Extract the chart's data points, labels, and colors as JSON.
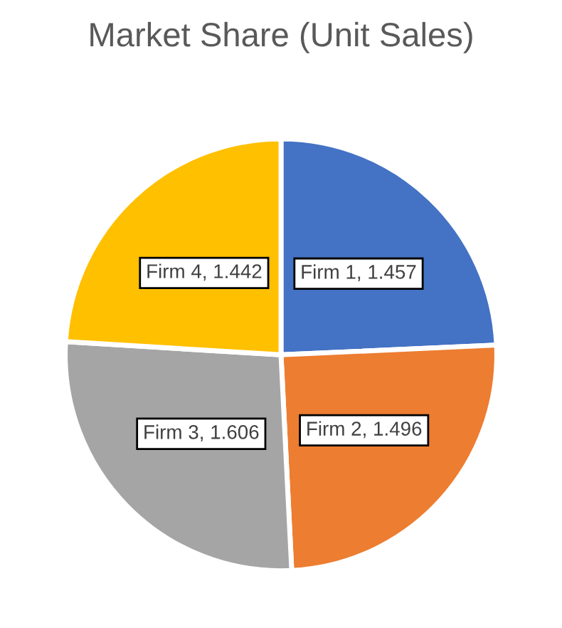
{
  "chart_data": {
    "type": "pie",
    "title": "Market Share (Unit Sales)",
    "categories": [
      "Firm 1",
      "Firm 2",
      "Firm 3",
      "Firm 4"
    ],
    "values": [
      1.457,
      1.496,
      1.606,
      1.442
    ],
    "colors": [
      "#4472c4",
      "#ed7d31",
      "#a5a5a5",
      "#ffc000"
    ],
    "value_labels": [
      ", 1.457",
      ", 1.496",
      ", 1.606",
      ", 1.442"
    ]
  }
}
